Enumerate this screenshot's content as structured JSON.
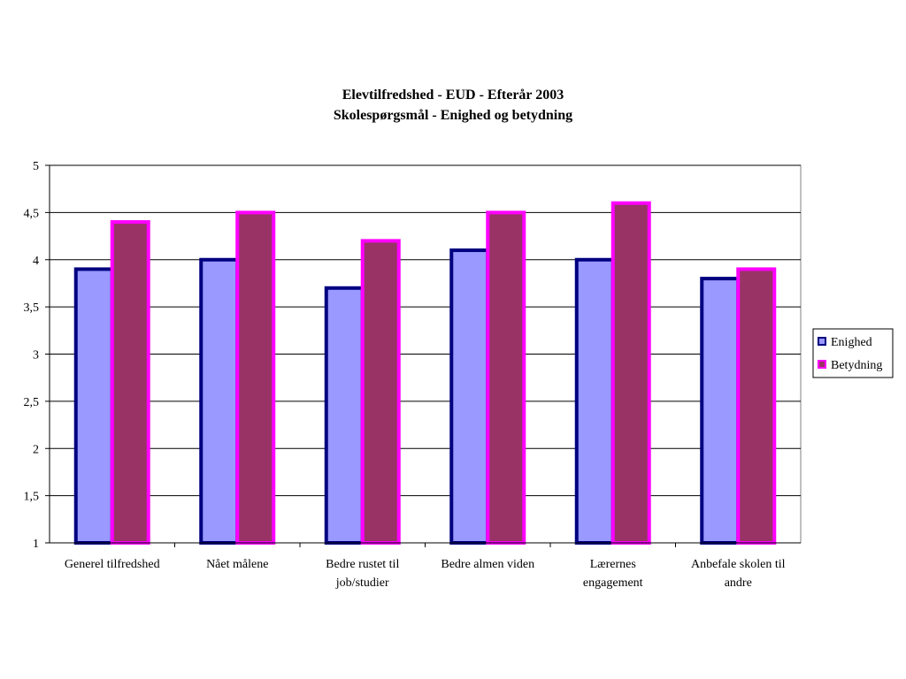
{
  "chart_data": {
    "type": "bar",
    "title": "Elevtilfredshed - EUD - Efterår 2003",
    "subtitle": "Skolespørgsmål - Enighed og betydning",
    "categories": [
      [
        "Generel tilfredshed"
      ],
      [
        "Nået målene"
      ],
      [
        "Bedre rustet til",
        "job/studier"
      ],
      [
        "Bedre almen viden"
      ],
      [
        "Lærernes",
        "engagement"
      ],
      [
        "Anbefale skolen til",
        "andre"
      ]
    ],
    "series": [
      {
        "name": "Enighed",
        "values": [
          3.9,
          4.0,
          3.7,
          4.1,
          4.0,
          3.8
        ],
        "fill": "#9999FF",
        "stroke": "#000080"
      },
      {
        "name": "Betydning",
        "values": [
          4.4,
          4.5,
          4.2,
          4.5,
          4.6,
          3.9
        ],
        "fill": "#993366",
        "stroke": "#FF00FF"
      }
    ],
    "ylim": [
      1,
      5
    ],
    "yticks": [
      "1",
      "1,5",
      "2",
      "2,5",
      "3",
      "3,5",
      "4",
      "4,5",
      "5"
    ],
    "grid": true,
    "legend_position": "right"
  }
}
